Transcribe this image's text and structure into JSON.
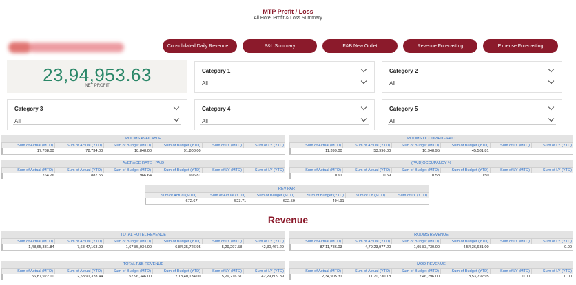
{
  "header": {
    "title": "MTP Profit / Loss",
    "subtitle": "All Hotel Profit & Loss Summary"
  },
  "nav": [
    {
      "label": "Consolidated Daily Revenue..."
    },
    {
      "label": "P&L Summary"
    },
    {
      "label": "F&B New Outlet"
    },
    {
      "label": "Revenue Forecasting"
    },
    {
      "label": "Expense Forecasting"
    }
  ],
  "kpi": {
    "value": "23,94,953.63",
    "label": "NET PROFIT"
  },
  "slicers": [
    {
      "caption": "Category 1",
      "value": "All"
    },
    {
      "caption": "Category 2",
      "value": "All"
    },
    {
      "caption": "Category 3",
      "value": "All"
    },
    {
      "caption": "Category 4",
      "value": "All"
    },
    {
      "caption": "Category 5",
      "value": "All"
    }
  ],
  "table_columns": [
    "Sum of Actual (MTD)",
    "Sum of Actual (YTD)",
    "Sum of Budget (MTD)",
    "Sum of Budget (YTD)",
    "Sum of LY (MTD)",
    "Sum of LY (YTD)"
  ],
  "tables": {
    "rooms_available": {
      "title": "ROOMS AVAILABLE",
      "values": [
        "17,788.00",
        "78,734.00",
        "18,848.00",
        "91,808.00",
        "",
        ""
      ]
    },
    "rooms_occupied": {
      "title": "ROOMS OCCUPIED - PAID",
      "values": [
        "11,399.00",
        "53,996.00",
        "10,948.95",
        "45,581.81",
        "",
        ""
      ]
    },
    "average_rate": {
      "title": "AVERAGE RATE - PAID",
      "values": [
        "764.26",
        "887.55",
        "966.64",
        "996.81",
        "",
        ""
      ]
    },
    "occupancy": {
      "title": "(PAID)OCCUPANCY %",
      "values": [
        "0.61",
        "0.59",
        "0.58",
        "0.50",
        "",
        ""
      ]
    },
    "rev_par": {
      "title": "REV PAR",
      "values": [
        "672.67",
        "523.71",
        "622.59",
        "494.91",
        "",
        ""
      ]
    },
    "total_hotel_revenue": {
      "title": "TOTAL HOTEL REVENUE",
      "values": [
        "1,48,65,381.84",
        "7,68,47,163.99",
        "1,67,85,934.00",
        "6,84,35,726.95",
        "5,29,297.58",
        "42,30,467.29"
      ]
    },
    "rooms_revenue": {
      "title": "ROOMS REVENUE",
      "values": [
        "87,11,786.03",
        "4,79,23,977.20",
        "1,05,83,730.00",
        "4,54,36,631.00",
        "",
        "0.00"
      ]
    },
    "total_fnb_revenue": {
      "title": "TOTAL F&B REVENUE",
      "values": [
        "56,87,922.10",
        "2,58,91,328.44",
        "57,96,346.00",
        "2,13,40,134.00",
        "5,29,216.61",
        "42,29,809.89"
      ]
    },
    "mod_revenue": {
      "title": "MOD REVENUE",
      "values": [
        "2,34,905.31",
        "11,70,730.18",
        "2,46,296.00",
        "8,53,792.95",
        "0.00",
        "0.00"
      ]
    }
  },
  "section": {
    "revenue_title": "Revenue"
  }
}
